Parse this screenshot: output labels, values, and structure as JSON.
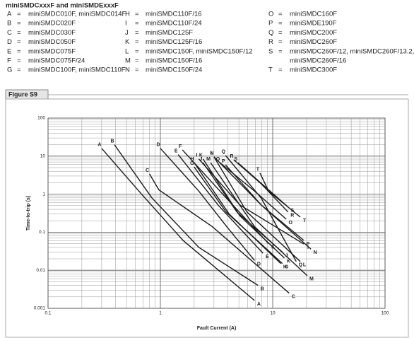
{
  "header": {
    "title": "miniSMDCxxxF and miniSMDExxxF"
  },
  "separator": "=",
  "legend": [
    {
      "key": "A",
      "lines": [
        "miniSMDC010F, miniSMDC014F"
      ]
    },
    {
      "key": "B",
      "lines": [
        "miniSMDC020F"
      ]
    },
    {
      "key": "C",
      "lines": [
        "miniSMDC030F"
      ]
    },
    {
      "key": "D",
      "lines": [
        "miniSMDC050F"
      ]
    },
    {
      "key": "E",
      "lines": [
        "miniSMDC075F"
      ]
    },
    {
      "key": "F",
      "lines": [
        "miniSMDC075F/24"
      ]
    },
    {
      "key": "G",
      "lines": [
        "miniSMDC100F, miniSMDC110F"
      ]
    },
    {
      "key": "H",
      "lines": [
        "miniSMDC110F/16"
      ]
    },
    {
      "key": "I",
      "lines": [
        "miniSMDC110F/24"
      ]
    },
    {
      "key": "J",
      "lines": [
        "miniSMDC125F"
      ]
    },
    {
      "key": "K",
      "lines": [
        "miniSMDC125F/16"
      ]
    },
    {
      "key": "L",
      "lines": [
        "miniSMDC150F, miniSMDC150F/12"
      ]
    },
    {
      "key": "M",
      "lines": [
        "miniSMDC150F/16"
      ]
    },
    {
      "key": "N",
      "lines": [
        "miniSMDC150F/24"
      ]
    },
    {
      "key": "O",
      "lines": [
        "miniSMDC160F"
      ]
    },
    {
      "key": "P",
      "lines": [
        "miniSMDE190F"
      ]
    },
    {
      "key": "Q",
      "lines": [
        "miniSMDC200F"
      ]
    },
    {
      "key": "R",
      "lines": [
        "miniSMDC260F"
      ]
    },
    {
      "key": "S",
      "lines": [
        "miniSMDC260F/12, miniSMDC260F/13.2,",
        "miniSMDC260F/16"
      ]
    },
    {
      "key": "T",
      "lines": [
        "miniSMDC300F"
      ]
    }
  ],
  "figure_label": "Figure S9",
  "chart_data": {
    "type": "line",
    "x_label": "Fault Current (A)",
    "y_label": "Time-to-trip (s)",
    "xlim": [
      0.1,
      100
    ],
    "ylim": [
      0.001,
      100
    ],
    "xticks": [
      0.1,
      1,
      10,
      100
    ],
    "yticks": [
      0.001,
      0.01,
      0.1,
      1,
      10,
      100
    ],
    "log_x": true,
    "log_y": true,
    "grid": true,
    "minor_grid": true,
    "color": "#1a1a1a",
    "series": [
      {
        "name": "A",
        "x": [
          0.3,
          0.68,
          1.6,
          6.9
        ],
        "values": [
          16,
          1,
          0.06,
          0.0016
        ]
      },
      {
        "name": "B",
        "x": [
          0.39,
          0.84,
          2.2,
          7.4
        ],
        "values": [
          20,
          0.8,
          0.04,
          0.004
        ]
      },
      {
        "name": "C",
        "x": [
          0.8,
          0.97,
          2.9,
          14
        ],
        "values": [
          3.4,
          1.3,
          0.14,
          0.0025
        ]
      },
      {
        "name": "D",
        "x": [
          1,
          2.2,
          3.9,
          6.9
        ],
        "values": [
          16,
          1.2,
          0.14,
          0.018
        ]
      },
      {
        "name": "E",
        "x": [
          1.44,
          3.3,
          8.2
        ],
        "values": [
          11,
          0.5,
          0.028
        ]
      },
      {
        "name": "F",
        "x": [
          1.57,
          3.85,
          9.2
        ],
        "values": [
          14.6,
          0.8,
          0.05
        ]
      },
      {
        "name": "G",
        "x": [
          2,
          3.85,
          12.2
        ],
        "values": [
          5.2,
          0.34,
          0.015
        ]
      },
      {
        "name": "H",
        "x": [
          2,
          4.1,
          11.8
        ],
        "values": [
          6.7,
          0.3,
          0.015
        ]
      },
      {
        "name": "I",
        "x": [
          2.2,
          5.1,
          18.9
        ],
        "values": [
          8.4,
          0.52,
          0.049
        ]
      },
      {
        "name": "J",
        "x": [
          2.4,
          4.8,
          12.2
        ],
        "values": [
          6.7,
          0.34,
          0.03
        ]
      },
      {
        "name": "K",
        "x": [
          2.4,
          5.1,
          12.7
        ],
        "values": [
          8.4,
          0.27,
          0.021
        ]
      },
      {
        "name": "L",
        "x": [
          3,
          5.9,
          17.6
        ],
        "values": [
          9.6,
          0.34,
          0.017
        ]
      },
      {
        "name": "M",
        "x": [
          2.8,
          6.9,
          20.3
        ],
        "values": [
          6.7,
          0.14,
          0.0072
        ]
      },
      {
        "name": "N",
        "x": [
          3,
          7.9,
          21.9
        ],
        "values": [
          9.6,
          0.52,
          0.036
        ]
      },
      {
        "name": "O",
        "x": [
          3.4,
          6.9,
          13.2
        ],
        "values": [
          6.7,
          1.2,
          0.22
        ]
      },
      {
        "name": "P",
        "x": [
          3.8,
          7.9,
          18.9
        ],
        "values": [
          5.9,
          0.52,
          0.061
        ]
      },
      {
        "name": "Q",
        "x": [
          3.8,
          7.9,
          16.2
        ],
        "values": [
          10.4,
          0.79,
          0.017
        ]
      },
      {
        "name": "R",
        "x": [
          4.5,
          7.9,
          13.7
        ],
        "values": [
          8,
          1.87,
          0.34
        ]
      },
      {
        "name": "S",
        "x": [
          4.9,
          8.5,
          13.7
        ],
        "values": [
          6.7,
          1.6,
          0.46
        ]
      },
      {
        "name": "T",
        "x": [
          7.7,
          9.2,
          17.6
        ],
        "values": [
          3.6,
          1.2,
          0.25
        ]
      }
    ]
  }
}
